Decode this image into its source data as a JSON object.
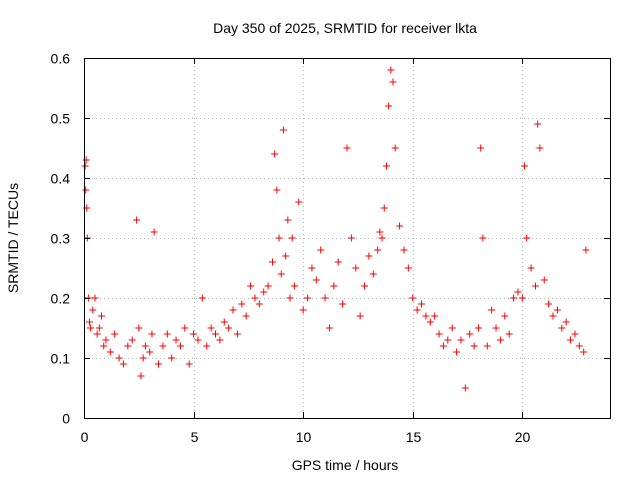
{
  "chart_data": {
    "type": "scatter",
    "title": "Day 350 of 2025, SRMTID for receiver lkta",
    "xlabel": "GPS time / hours",
    "ylabel": "SRMTID / TECUs",
    "xlim": [
      0,
      24
    ],
    "ylim": [
      0,
      0.6
    ],
    "xticks": [
      0,
      5,
      10,
      15,
      20
    ],
    "xtick_labels": [
      "0",
      "5",
      "10",
      "15",
      "20"
    ],
    "yticks": [
      0,
      0.1,
      0.2,
      0.3,
      0.4,
      0.5,
      0.6
    ],
    "ytick_labels": [
      "0",
      "0.1",
      "0.2",
      "0.3",
      "0.4",
      "0.5",
      "0.6"
    ],
    "grid": true,
    "marker": "+",
    "color": "#ff0000",
    "series": [
      {
        "name": "SRMTID",
        "x": [
          0.05,
          0.08,
          0.1,
          0.12,
          0.15,
          0.2,
          0.25,
          0.3,
          0.4,
          0.5,
          0.6,
          0.7,
          0.8,
          0.9,
          1.0,
          1.2,
          1.4,
          1.6,
          1.8,
          2.0,
          2.2,
          2.4,
          2.5,
          2.6,
          2.7,
          2.8,
          3.0,
          3.1,
          3.2,
          3.4,
          3.6,
          3.8,
          4.0,
          4.2,
          4.4,
          4.6,
          4.8,
          5.0,
          5.2,
          5.4,
          5.6,
          5.8,
          6.0,
          6.2,
          6.4,
          6.6,
          6.8,
          7.0,
          7.2,
          7.4,
          7.6,
          7.8,
          8.0,
          8.2,
          8.4,
          8.6,
          8.7,
          8.8,
          8.9,
          9.0,
          9.1,
          9.2,
          9.3,
          9.4,
          9.5,
          9.6,
          9.8,
          10.0,
          10.2,
          10.4,
          10.6,
          10.8,
          11.0,
          11.2,
          11.4,
          11.6,
          11.8,
          12.0,
          12.2,
          12.4,
          12.6,
          12.8,
          13.0,
          13.2,
          13.4,
          13.5,
          13.6,
          13.7,
          13.8,
          13.9,
          14.0,
          14.1,
          14.2,
          14.4,
          14.6,
          14.8,
          15.0,
          15.2,
          15.4,
          15.6,
          15.8,
          16.0,
          16.2,
          16.4,
          16.6,
          16.8,
          17.0,
          17.2,
          17.4,
          17.6,
          17.8,
          18.0,
          18.1,
          18.2,
          18.4,
          18.6,
          18.8,
          19.0,
          19.2,
          19.4,
          19.6,
          19.8,
          20.0,
          20.1,
          20.2,
          20.4,
          20.6,
          20.7,
          20.8,
          21.0,
          21.2,
          21.4,
          21.6,
          21.8,
          22.0,
          22.2,
          22.4,
          22.6,
          22.8,
          22.9
        ],
        "y": [
          0.42,
          0.38,
          0.43,
          0.35,
          0.3,
          0.2,
          0.16,
          0.15,
          0.18,
          0.2,
          0.14,
          0.15,
          0.17,
          0.12,
          0.13,
          0.11,
          0.14,
          0.1,
          0.09,
          0.12,
          0.13,
          0.33,
          0.15,
          0.07,
          0.1,
          0.12,
          0.11,
          0.14,
          0.31,
          0.09,
          0.12,
          0.14,
          0.1,
          0.13,
          0.12,
          0.15,
          0.09,
          0.14,
          0.13,
          0.2,
          0.12,
          0.15,
          0.14,
          0.13,
          0.16,
          0.15,
          0.18,
          0.14,
          0.19,
          0.17,
          0.22,
          0.2,
          0.19,
          0.21,
          0.22,
          0.26,
          0.44,
          0.38,
          0.3,
          0.24,
          0.48,
          0.27,
          0.33,
          0.2,
          0.3,
          0.22,
          0.36,
          0.18,
          0.2,
          0.25,
          0.23,
          0.28,
          0.2,
          0.15,
          0.22,
          0.26,
          0.19,
          0.45,
          0.3,
          0.25,
          0.17,
          0.22,
          0.27,
          0.24,
          0.28,
          0.31,
          0.3,
          0.35,
          0.42,
          0.52,
          0.58,
          0.56,
          0.45,
          0.32,
          0.28,
          0.25,
          0.2,
          0.18,
          0.19,
          0.17,
          0.16,
          0.17,
          0.14,
          0.12,
          0.13,
          0.15,
          0.11,
          0.13,
          0.05,
          0.14,
          0.12,
          0.15,
          0.45,
          0.3,
          0.12,
          0.18,
          0.15,
          0.13,
          0.17,
          0.14,
          0.2,
          0.21,
          0.2,
          0.42,
          0.3,
          0.25,
          0.22,
          0.49,
          0.45,
          0.23,
          0.19,
          0.17,
          0.18,
          0.15,
          0.16,
          0.13,
          0.14,
          0.12,
          0.11,
          0.28
        ]
      }
    ]
  }
}
